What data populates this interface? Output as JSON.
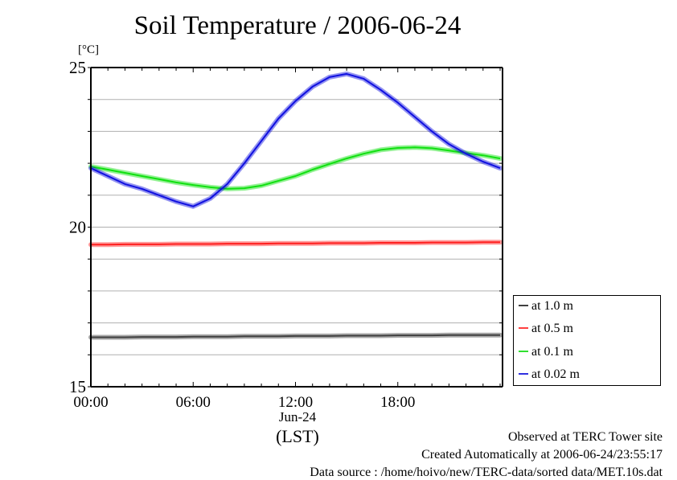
{
  "chart_data": {
    "type": "line",
    "title": "Soil Temperature / 2006-06-24",
    "ylabel": "[°C]",
    "xlabel": "(LST)",
    "x_date_label": "Jun-24",
    "xlim": [
      0,
      24
    ],
    "ylim": [
      15,
      25
    ],
    "grid": true,
    "y_ticks": [
      15,
      20,
      25
    ],
    "y_gridlines": [
      16,
      17,
      18,
      19,
      20,
      21,
      22,
      23,
      24
    ],
    "x_ticks": [
      0,
      6,
      12,
      18
    ],
    "x_tick_labels": [
      "00:00",
      "06:00",
      "12:00",
      "18:00"
    ],
    "x_minor_tick_step_hours": 1,
    "legend_position": "right",
    "x": [
      0,
      1,
      2,
      3,
      4,
      5,
      6,
      7,
      8,
      9,
      10,
      11,
      12,
      13,
      14,
      15,
      16,
      17,
      18,
      19,
      20,
      21,
      22,
      23,
      24
    ],
    "series": [
      {
        "name": "at 1.0 m",
        "color": "#404040",
        "values": [
          16.55,
          16.55,
          16.55,
          16.56,
          16.56,
          16.56,
          16.57,
          16.57,
          16.57,
          16.58,
          16.58,
          16.58,
          16.59,
          16.59,
          16.59,
          16.6,
          16.6,
          16.6,
          16.61,
          16.61,
          16.61,
          16.62,
          16.62,
          16.62,
          16.62
        ]
      },
      {
        "name": "at 0.5 m",
        "color": "#ff2020",
        "values": [
          19.45,
          19.45,
          19.46,
          19.46,
          19.46,
          19.47,
          19.47,
          19.47,
          19.48,
          19.48,
          19.48,
          19.49,
          19.49,
          19.49,
          19.5,
          19.5,
          19.5,
          19.51,
          19.51,
          19.51,
          19.52,
          19.52,
          19.52,
          19.53,
          19.53
        ]
      },
      {
        "name": "at 0.1 m",
        "color": "#10e010",
        "values": [
          21.9,
          21.8,
          21.7,
          21.6,
          21.5,
          21.4,
          21.32,
          21.25,
          21.2,
          21.22,
          21.3,
          21.45,
          21.6,
          21.8,
          21.98,
          22.15,
          22.3,
          22.42,
          22.48,
          22.5,
          22.47,
          22.4,
          22.32,
          22.25,
          22.15
        ]
      },
      {
        "name": "at 0.02 m",
        "color": "#1010e0",
        "values": [
          21.85,
          21.6,
          21.35,
          21.2,
          21.0,
          20.8,
          20.65,
          20.9,
          21.35,
          22.0,
          22.7,
          23.4,
          23.95,
          24.4,
          24.7,
          24.8,
          24.65,
          24.3,
          23.9,
          23.45,
          23.0,
          22.6,
          22.3,
          22.05,
          21.85
        ]
      }
    ]
  },
  "footer": {
    "line1": "Observed at TERC Tower site",
    "line2": "Created Automatically at 2006-06-24/23:55:17",
    "line3": "Data source : /home/hoivo/new/TERC-data/sorted  data/MET.10s.dat"
  }
}
